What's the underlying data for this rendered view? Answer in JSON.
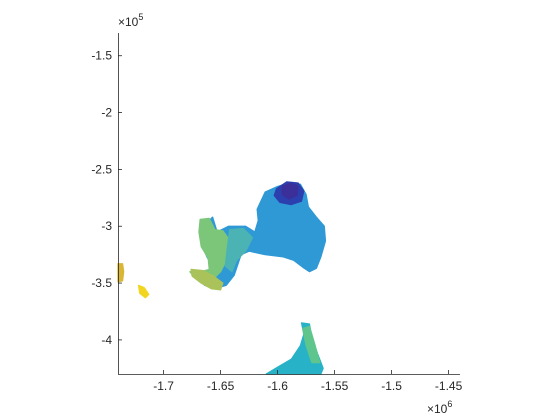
{
  "chart_data": {
    "type": "heatmap",
    "title": "",
    "xlabel": "",
    "ylabel": "",
    "xlim": [
      -1740000,
      -1440000
    ],
    "ylim": [
      -430000,
      -130000
    ],
    "x_exponent_label": "×10",
    "x_exponent_power": "6",
    "y_exponent_label": "×10",
    "y_exponent_power": "5",
    "x_ticks": [
      {
        "value": -1700000,
        "label": "-1.7"
      },
      {
        "value": -1650000,
        "label": "-1.65"
      },
      {
        "value": -1600000,
        "label": "-1.6"
      },
      {
        "value": -1550000,
        "label": "-1.55"
      },
      {
        "value": -1500000,
        "label": "-1.5"
      },
      {
        "value": -1450000,
        "label": "-1.45"
      }
    ],
    "y_ticks": [
      {
        "value": -150000,
        "label": "-1.5"
      },
      {
        "value": -200000,
        "label": "-2"
      },
      {
        "value": -250000,
        "label": "-2.5"
      },
      {
        "value": -300000,
        "label": "-3"
      },
      {
        "value": -350000,
        "label": "-3.5"
      },
      {
        "value": -400000,
        "label": "-4"
      }
    ],
    "grid": false,
    "colormap": "parula",
    "regions": [
      {
        "id": "main-mass",
        "fill": "#2f99d6",
        "polygon": [
          [
            -1611000,
            -270000
          ],
          [
            -1600000,
            -265000
          ],
          [
            -1590000,
            -262000
          ],
          [
            -1580000,
            -263000
          ],
          [
            -1575000,
            -272000
          ],
          [
            -1573000,
            -283000
          ],
          [
            -1566000,
            -292000
          ],
          [
            -1559000,
            -300000
          ],
          [
            -1558000,
            -313000
          ],
          [
            -1562000,
            -327000
          ],
          [
            -1566000,
            -337000
          ],
          [
            -1572000,
            -340000
          ],
          [
            -1578000,
            -336000
          ],
          [
            -1586000,
            -330000
          ],
          [
            -1595000,
            -327000
          ],
          [
            -1611000,
            -325000
          ],
          [
            -1625000,
            -322000
          ],
          [
            -1632000,
            -325000
          ],
          [
            -1638000,
            -343000
          ],
          [
            -1645000,
            -352000
          ],
          [
            -1655000,
            -355000
          ],
          [
            -1664000,
            -352000
          ],
          [
            -1670000,
            -345000
          ],
          [
            -1676000,
            -340000
          ],
          [
            -1667000,
            -340000
          ],
          [
            -1660000,
            -342000
          ],
          [
            -1657000,
            -335000
          ],
          [
            -1662000,
            -327000
          ],
          [
            -1667000,
            -315000
          ],
          [
            -1665000,
            -300000
          ],
          [
            -1657000,
            -292000
          ],
          [
            -1653000,
            -305000
          ],
          [
            -1643000,
            -300000
          ],
          [
            -1628000,
            -300000
          ],
          [
            -1620000,
            -305000
          ],
          [
            -1617000,
            -295000
          ],
          [
            -1618000,
            -285000
          ]
        ]
      },
      {
        "id": "west-lobe",
        "fill": "#7cc67a",
        "polygon": [
          [
            -1668000,
            -294000
          ],
          [
            -1660000,
            -293000
          ],
          [
            -1655000,
            -303000
          ],
          [
            -1648000,
            -304000
          ],
          [
            -1640000,
            -315000
          ],
          [
            -1645000,
            -330000
          ],
          [
            -1650000,
            -340000
          ],
          [
            -1658000,
            -348000
          ],
          [
            -1665000,
            -350000
          ],
          [
            -1672000,
            -346000
          ],
          [
            -1677000,
            -340000
          ],
          [
            -1668000,
            -340000
          ],
          [
            -1660000,
            -338000
          ],
          [
            -1661000,
            -328000
          ],
          [
            -1667000,
            -318000
          ],
          [
            -1669000,
            -305000
          ]
        ]
      },
      {
        "id": "southwest-tongue",
        "fill": "#a9c35a",
        "polygon": [
          [
            -1676000,
            -338000
          ],
          [
            -1665000,
            -339000
          ],
          [
            -1656000,
            -344000
          ],
          [
            -1648000,
            -350000
          ],
          [
            -1650000,
            -356000
          ],
          [
            -1658000,
            -355000
          ],
          [
            -1667000,
            -350000
          ],
          [
            -1675000,
            -344000
          ]
        ]
      },
      {
        "id": "mid-blend",
        "fill": "#4bb3b4",
        "polygon": [
          [
            -1642000,
            -303000
          ],
          [
            -1630000,
            -302000
          ],
          [
            -1622000,
            -310000
          ],
          [
            -1628000,
            -322000
          ],
          [
            -1636000,
            -330000
          ],
          [
            -1640000,
            -340000
          ],
          [
            -1646000,
            -335000
          ],
          [
            -1644000,
            -318000
          ]
        ]
      },
      {
        "id": "peak-zone",
        "fill": "#2c3fae",
        "polygon": [
          [
            -1601000,
            -267000
          ],
          [
            -1592000,
            -261000
          ],
          [
            -1582000,
            -262000
          ],
          [
            -1577000,
            -269000
          ],
          [
            -1579000,
            -278000
          ],
          [
            -1588000,
            -281000
          ],
          [
            -1598000,
            -279000
          ],
          [
            -1603000,
            -273000
          ]
        ]
      },
      {
        "id": "peak-core",
        "fill": "#3b2f9a",
        "polygon": [
          [
            -1596000,
            -265000
          ],
          [
            -1588000,
            -262000
          ],
          [
            -1582000,
            -265000
          ],
          [
            -1583000,
            -273000
          ],
          [
            -1590000,
            -276000
          ],
          [
            -1596000,
            -272000
          ]
        ]
      },
      {
        "id": "south-mass",
        "fill": "#28b2c8",
        "polygon": [
          [
            -1579000,
            -385000
          ],
          [
            -1572000,
            -386000
          ],
          [
            -1570000,
            -398000
          ],
          [
            -1565000,
            -412000
          ],
          [
            -1560000,
            -425000
          ],
          [
            -1562000,
            -430000
          ],
          [
            -1610000,
            -430000
          ],
          [
            -1600000,
            -424000
          ],
          [
            -1588000,
            -417000
          ],
          [
            -1580000,
            -405000
          ],
          [
            -1577000,
            -395000
          ]
        ]
      },
      {
        "id": "south-ridge",
        "fill": "#5ec58d",
        "polygon": [
          [
            -1578000,
            -390000
          ],
          [
            -1572000,
            -388000
          ],
          [
            -1567000,
            -405000
          ],
          [
            -1563000,
            -420000
          ],
          [
            -1570000,
            -420000
          ],
          [
            -1575000,
            -405000
          ]
        ]
      },
      {
        "id": "west-edge-patch",
        "fill": "#d9b636",
        "polygon": [
          [
            -1740000,
            -333000
          ],
          [
            -1736000,
            -333000
          ],
          [
            -1735000,
            -340000
          ],
          [
            -1736000,
            -348000
          ],
          [
            -1740000,
            -349000
          ]
        ]
      },
      {
        "id": "far-west-blob",
        "fill": "#f2d51f",
        "polygon": [
          [
            -1722000,
            -352000
          ],
          [
            -1717000,
            -354000
          ],
          [
            -1713000,
            -360000
          ],
          [
            -1716000,
            -363000
          ],
          [
            -1721000,
            -359000
          ]
        ]
      }
    ]
  }
}
